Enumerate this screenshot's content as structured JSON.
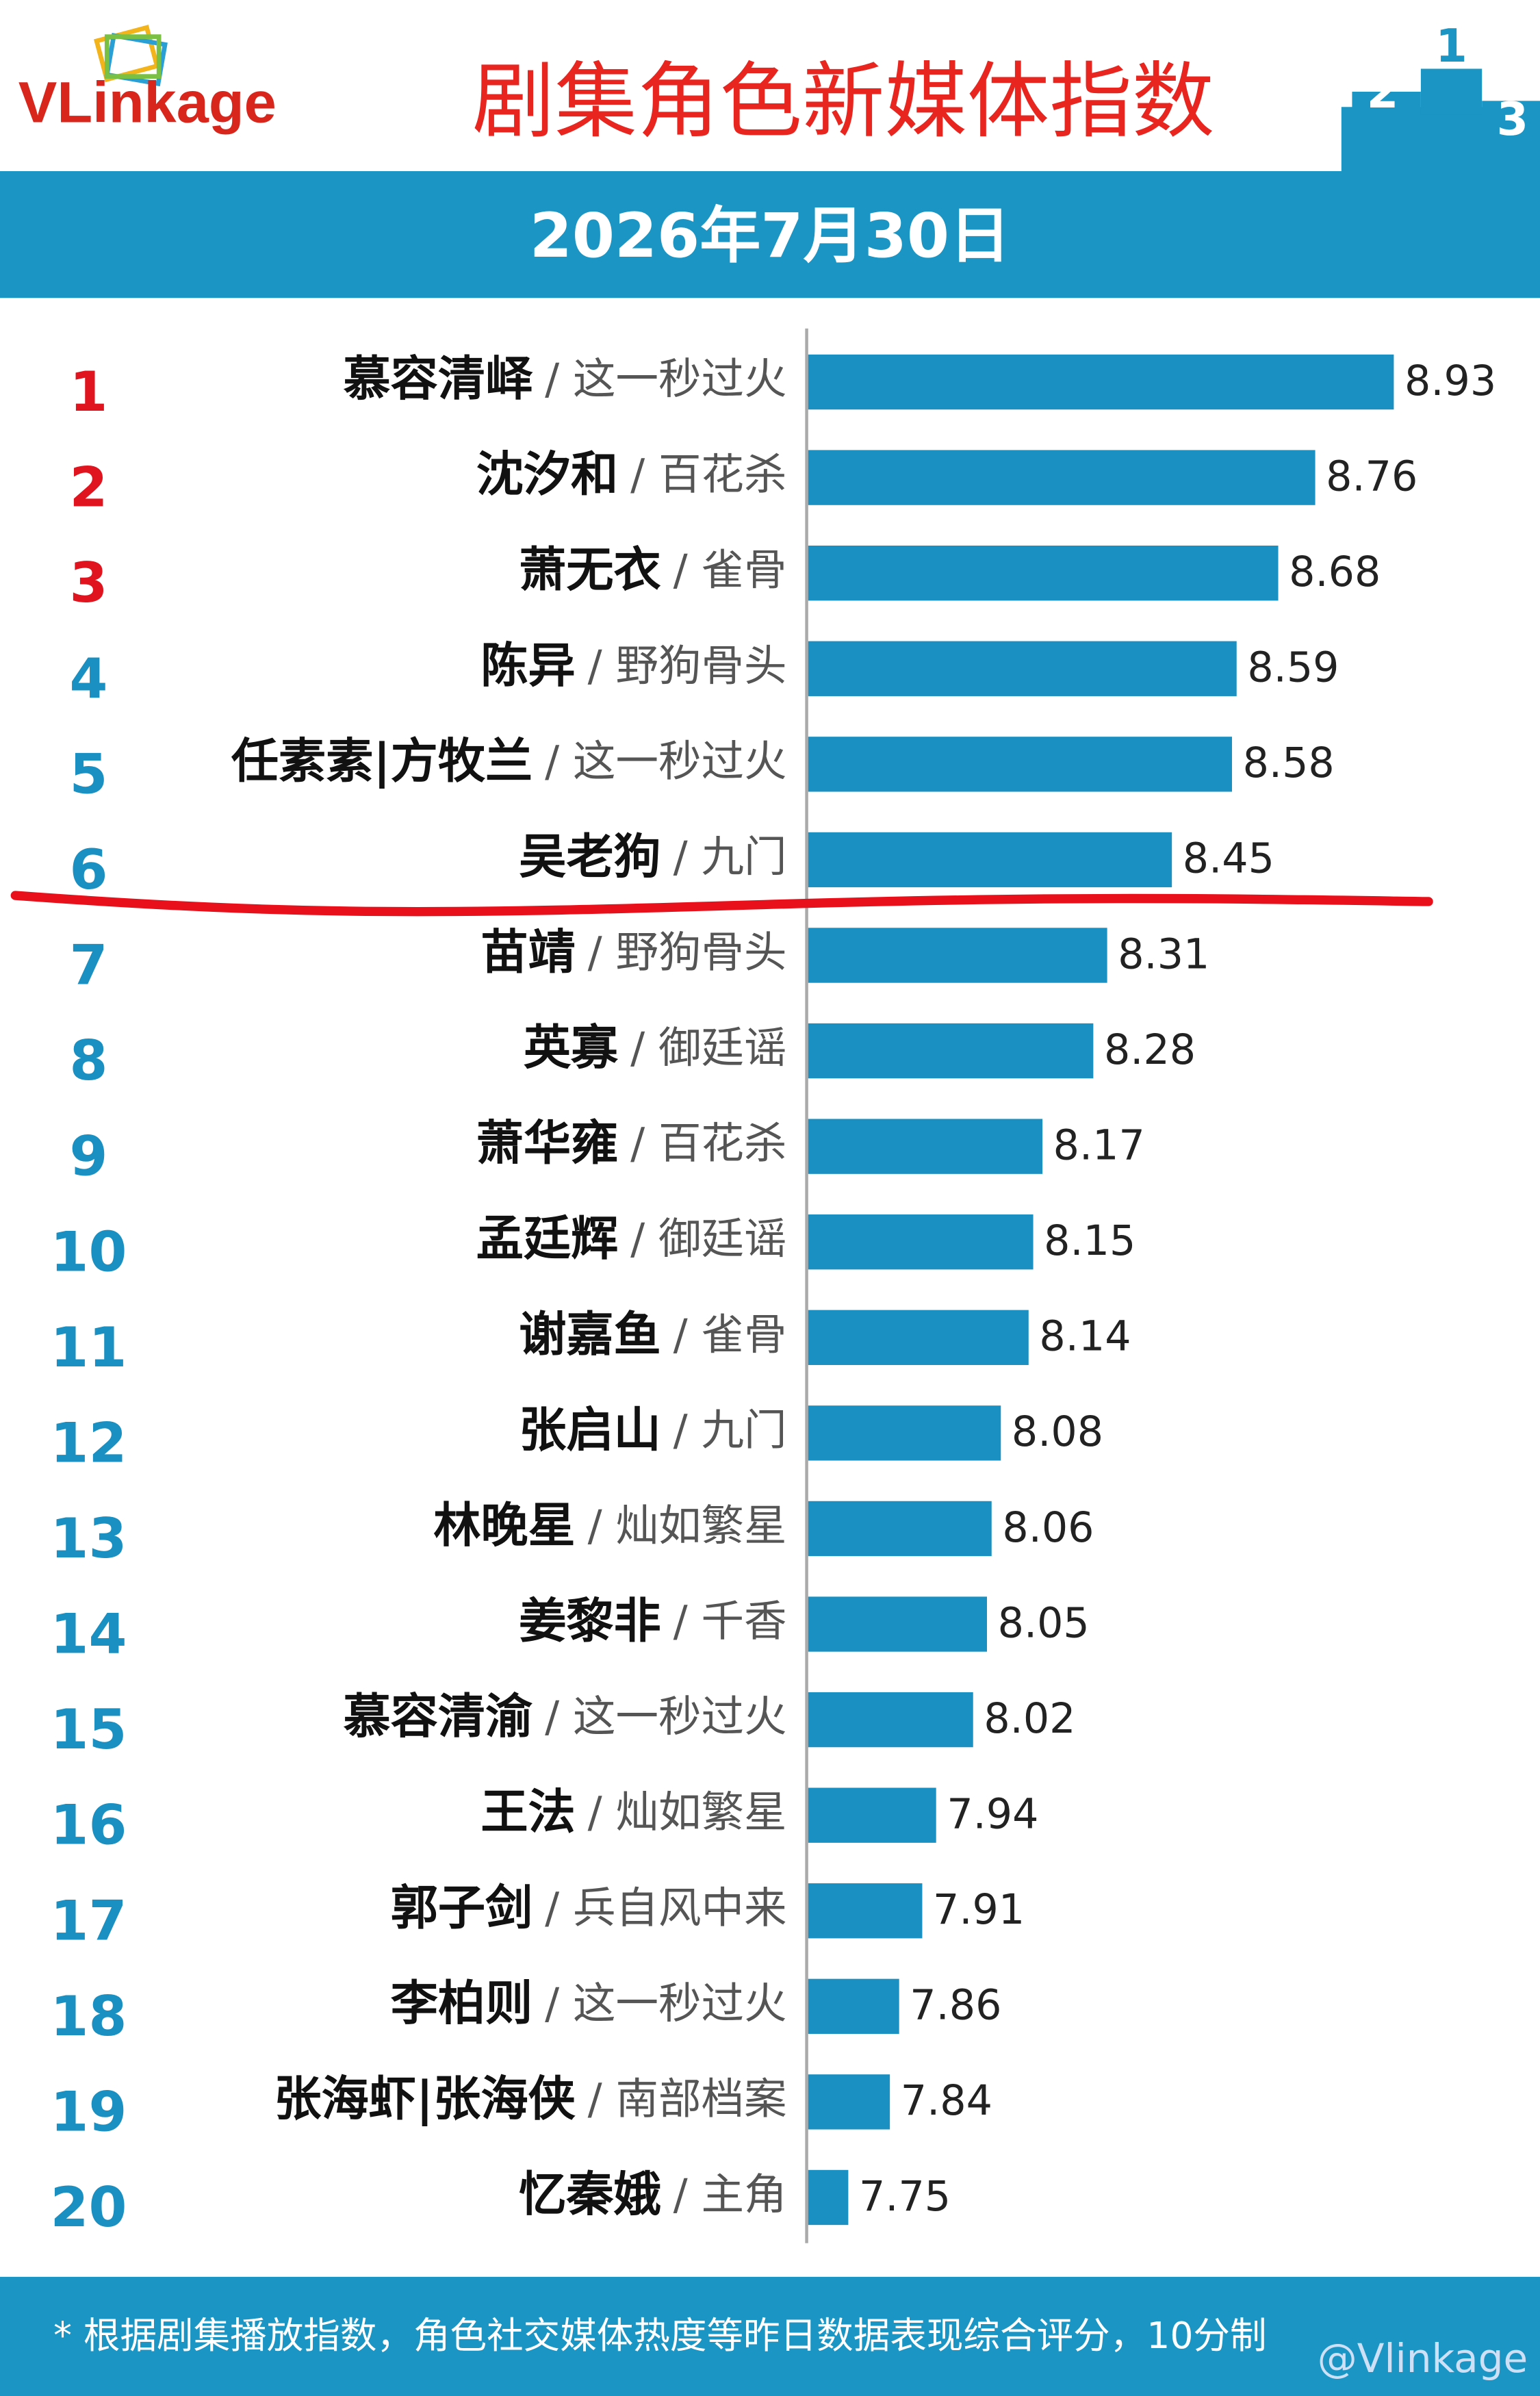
{
  "logo": "VLinkage",
  "watermark": "@Vlinkage",
  "chart_data": {
    "type": "bar",
    "title": "剧集角色新媒体指数",
    "subtitle": "2026年7月30日",
    "footnote": "* 根据剧集播放指数，角色社交媒体热度等昨日数据表现综合评分，10分制",
    "ranks": [
      1,
      2,
      3,
      4,
      5,
      6,
      7,
      8,
      9,
      10,
      11,
      12,
      13,
      14,
      15,
      16,
      17,
      18,
      19,
      20
    ],
    "rank_colors": [
      "#e0141e",
      "#e0141e",
      "#e0141e",
      "#1a8fc1",
      "#1a8fc1",
      "#1a8fc1",
      "#1a8fc1",
      "#1a8fc1",
      "#1a8fc1",
      "#1a8fc1",
      "#1a8fc1",
      "#1a8fc1",
      "#1a8fc1",
      "#1a8fc1",
      "#1a8fc1",
      "#1a8fc1",
      "#1a8fc1",
      "#1a8fc1",
      "#1a8fc1",
      "#1a8fc1"
    ],
    "categories": [
      "慕容清峄",
      "沈汐和",
      "萧无衣",
      "陈异",
      "任素素|方牧兰",
      "吴老狗",
      "苗靖",
      "英寡",
      "萧华雍",
      "孟廷辉",
      "谢嘉鱼",
      "张启山",
      "林晚星",
      "姜黎非",
      "慕容清渝",
      "王法",
      "郭子剑",
      "李柏则",
      "张海虾|张海侠",
      "忆秦娥"
    ],
    "shows": [
      "/ 这一秒过火",
      "/ 百花杀",
      "/ 雀骨",
      "/ 野狗骨头",
      "/ 这一秒过火",
      "/ 九门",
      "/ 野狗骨头",
      "/ 御廷谣",
      "/ 百花杀",
      "/ 御廷谣",
      "/ 雀骨",
      "/ 九门",
      "/ 灿如繁星",
      "/ 千香",
      "/ 这一秒过火",
      "/ 灿如繁星",
      "/ 兵自风中来",
      "/ 这一秒过火",
      "/ 南部档案",
      "/ 主角"
    ],
    "values": [
      8.93,
      8.76,
      8.68,
      8.59,
      8.58,
      8.45,
      8.31,
      8.28,
      8.17,
      8.15,
      8.14,
      8.08,
      8.06,
      8.05,
      8.02,
      7.94,
      7.91,
      7.86,
      7.84,
      7.75
    ],
    "color": "#1a8fc1",
    "xlim": [
      7.66,
      9.2
    ]
  }
}
